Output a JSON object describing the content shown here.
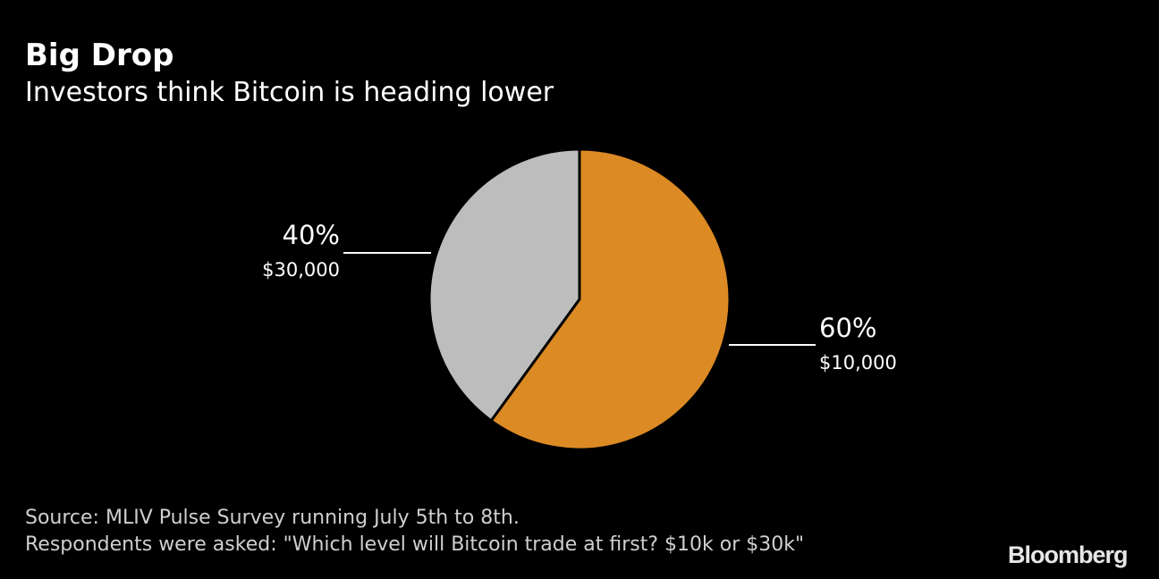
{
  "title": "Big Drop",
  "subtitle": "Investors think Bitcoin is heading lower",
  "chart_data": {
    "type": "pie",
    "slices": [
      {
        "label": "$10,000",
        "value": 60,
        "value_label": "60%",
        "color": "#dc8a24"
      },
      {
        "label": "$30,000",
        "value": 40,
        "value_label": "40%",
        "color": "#bdbdbd"
      }
    ],
    "start": "top, clockwise"
  },
  "source": "Source: MLIV Pulse Survey running July 5th to 8th.",
  "note": "Respondents were asked: \"Which level will Bitcoin trade at first? $10k or $30k\"",
  "logo": "Bloomberg"
}
